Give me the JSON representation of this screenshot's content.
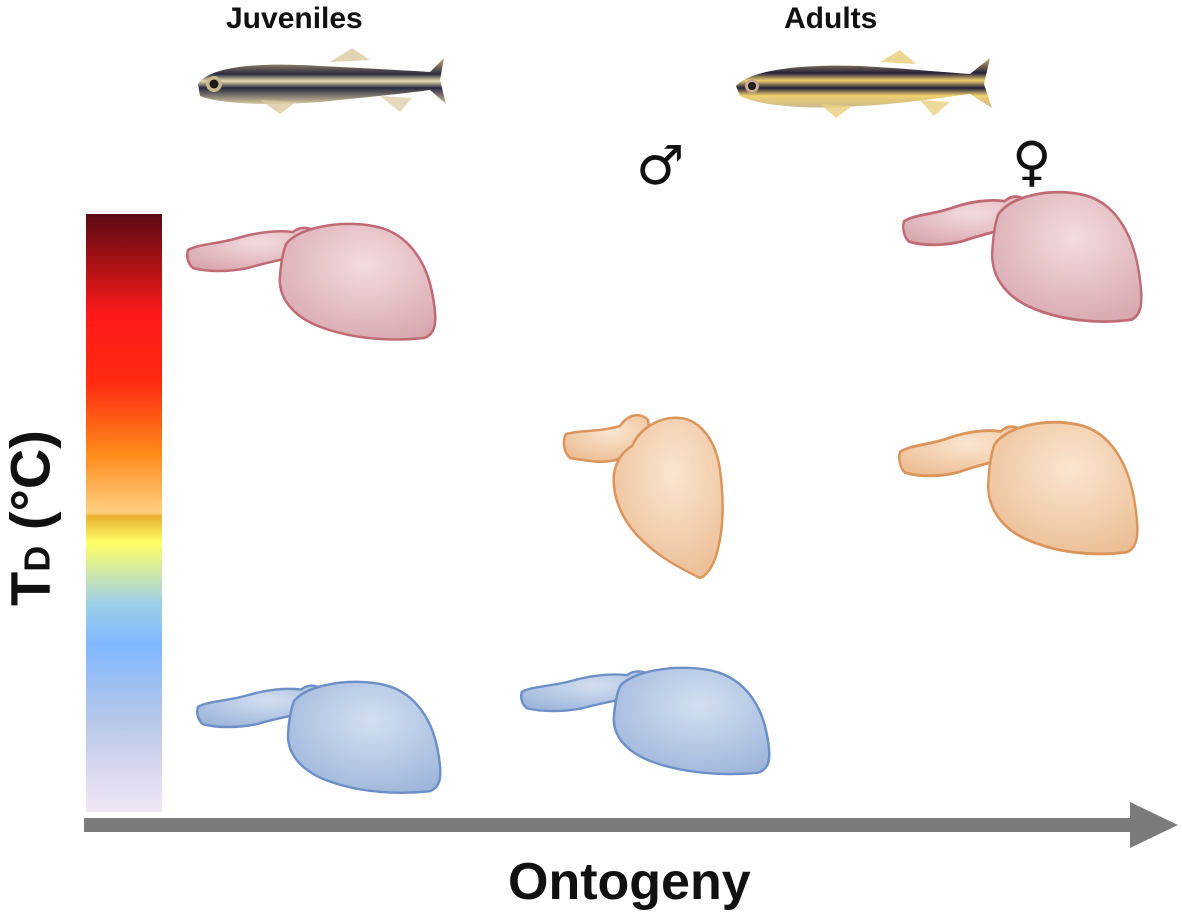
{
  "labels": {
    "juveniles": "Juveniles",
    "adults": "Adults",
    "male": "♂",
    "female": "♀",
    "x_axis": "Ontogeny",
    "y_axis_main": "T",
    "y_axis_sub": "D",
    "y_axis_unit": " (°C)"
  },
  "colors": {
    "heart_red": "#d9a6ac",
    "heart_red_stroke": "#b5515e",
    "heart_orange": "#f2caa0",
    "heart_orange_stroke": "#d88a4a",
    "heart_blue": "#a8bfe0",
    "heart_blue_stroke": "#5b83c0",
    "arrow": "#7b7b7b",
    "scale_top": "#5a0a12",
    "scale_red": "#ff1a1a",
    "scale_orange": "#ff8a1a",
    "scale_yellow": "#ffff66",
    "scale_blue": "#80b8ff",
    "scale_bottom": "#f2e6f5"
  },
  "hearts": [
    {
      "group": "juveniles",
      "temperature": "high",
      "color": "red"
    },
    {
      "group": "adult-female",
      "temperature": "high",
      "color": "red"
    },
    {
      "group": "adult-male",
      "temperature": "mid",
      "color": "orange"
    },
    {
      "group": "adult-female",
      "temperature": "mid",
      "color": "orange"
    },
    {
      "group": "juveniles",
      "temperature": "low",
      "color": "blue"
    },
    {
      "group": "adult-male",
      "temperature": "low",
      "color": "blue"
    }
  ]
}
